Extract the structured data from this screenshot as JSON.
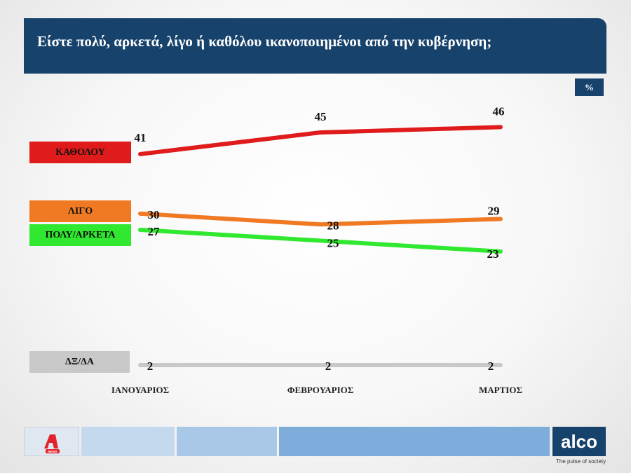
{
  "header": {
    "title": "Είστε πολύ, αρκετά, λίγο ή καθόλου ικανοποιημένοι από την κυβέρνηση;"
  },
  "unit_label": "%",
  "footer": {
    "brand": "alco",
    "tagline": "The pulse of society",
    "news_logo": "NEWS"
  },
  "colors": {
    "header_bg": "#17426b",
    "kathólou": "#e01b1b",
    "ligo": "#f07a24",
    "poly": "#2fe82f",
    "dxda": "#c8c8c8"
  },
  "chart_data": {
    "type": "line",
    "categories": [
      "ΙΑΝΟΥΑΡΙΟΣ",
      "ΦΕΒΡΟΥΑΡΙΟΣ",
      "ΜΑΡΤΙΟΣ"
    ],
    "series": [
      {
        "name": "ΚΑΘΟΛΟΥ",
        "values": [
          41,
          45,
          46
        ],
        "color": "#e01b1b"
      },
      {
        "name": "ΛΙΓΟ",
        "values": [
          30,
          28,
          29
        ],
        "color": "#f07a24"
      },
      {
        "name": "ΠΟΛΥ/ΑΡΚΕΤΑ",
        "values": [
          27,
          25,
          23
        ],
        "color": "#2fe82f"
      },
      {
        "name": "ΔΞ/ΔΑ",
        "values": [
          2,
          2,
          2
        ],
        "color": "#c8c8c8"
      }
    ],
    "unit": "%",
    "grid": false
  }
}
